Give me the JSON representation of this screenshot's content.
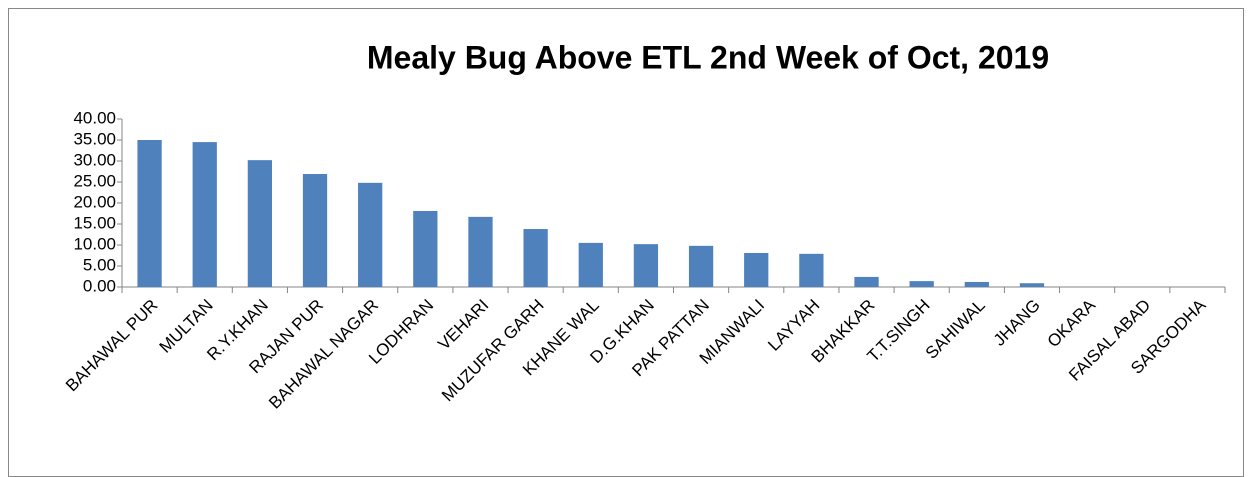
{
  "chart_data": {
    "type": "bar",
    "title": "Mealy Bug Above ETL 2nd Week of Oct, 2019",
    "categories": [
      "BAHAWAL PUR",
      "MULTAN",
      "R.Y.KHAN",
      "RAJAN PUR",
      "BAHAWAL NAGAR",
      "LODHRAN",
      "VEHARI",
      "MUZUFAR GARH",
      "KHANE WAL",
      "D.G.KHAN",
      "PAK PATTAN",
      "MIANWALI",
      "LAYYAH",
      "BHAKKAR",
      "T.T.SINGH",
      "SAHIWAL",
      "JHANG",
      "OKARA",
      "FAISAL ABAD",
      "SARGODHA"
    ],
    "values": [
      35.0,
      34.5,
      30.2,
      26.9,
      24.8,
      18.1,
      16.7,
      13.8,
      10.5,
      10.2,
      9.8,
      8.1,
      7.9,
      2.4,
      1.4,
      1.2,
      0.9,
      0,
      0,
      0
    ],
    "color": "#4f81bd",
    "ylim": [
      0,
      40
    ],
    "yticks": [
      {
        "value": 0,
        "label": "0.00"
      },
      {
        "value": 5,
        "label": "5.00"
      },
      {
        "value": 10,
        "label": "10.00"
      },
      {
        "value": 15,
        "label": "15.00"
      },
      {
        "value": 20,
        "label": "20.00"
      },
      {
        "value": 25,
        "label": "25.00"
      },
      {
        "value": 30,
        "label": "30.00"
      },
      {
        "value": 35,
        "label": "35.00"
      },
      {
        "value": 40,
        "label": "40.00"
      }
    ],
    "grid": false
  }
}
